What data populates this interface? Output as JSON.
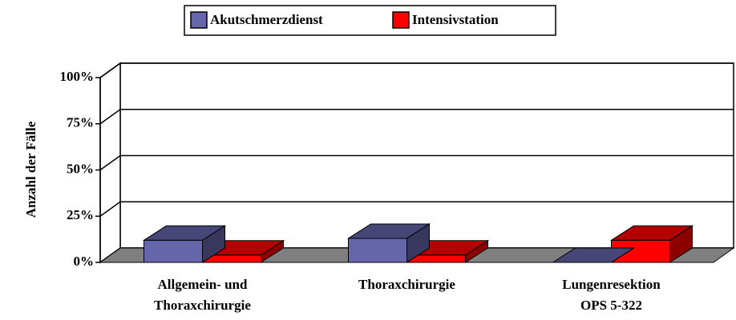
{
  "chart_data": {
    "type": "bar3d",
    "categories": [
      "Allgemein- und\nThoraxchirurgie",
      "Thoraxchirurgie",
      "Lungenresektion\nOPS 5-322"
    ],
    "series": [
      {
        "name": "Akutschmerzdienst",
        "color": "#6666aa",
        "values": [
          12,
          13,
          0
        ]
      },
      {
        "name": "Intensivstation",
        "color": "#ff0000",
        "values": [
          4,
          4,
          12
        ]
      }
    ],
    "ylabel": "Anzahl der Fälle",
    "ylim": [
      0,
      100
    ],
    "yticks": [
      {
        "value": 0,
        "label": "0%"
      },
      {
        "value": 25,
        "label": "25%"
      },
      {
        "value": 50,
        "label": "50%"
      },
      {
        "value": 75,
        "label": "75%"
      },
      {
        "value": 100,
        "label": "100%"
      }
    ],
    "grid": true,
    "legend": "top"
  }
}
